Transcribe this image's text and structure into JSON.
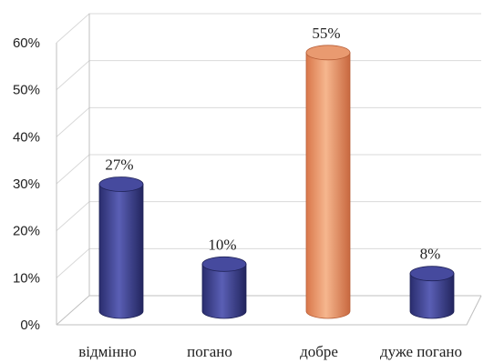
{
  "chart_data": {
    "type": "bar",
    "style": "3d-cylinder",
    "categories": [
      "відмінно",
      "погано",
      "добре",
      "дуже погано"
    ],
    "values": [
      27,
      10,
      55,
      8
    ],
    "data_labels": [
      "27%",
      "10%",
      "55%",
      "8%"
    ],
    "yticks": [
      "0%",
      "10%",
      "20%",
      "30%",
      "40%",
      "50%",
      "60%"
    ],
    "ylim": [
      0,
      60
    ],
    "grid": true,
    "legend": "none",
    "colors": {
      "default_bar": "#3b3f8f",
      "highlight_bar": "#e8956a",
      "highlight_index": 2
    }
  }
}
